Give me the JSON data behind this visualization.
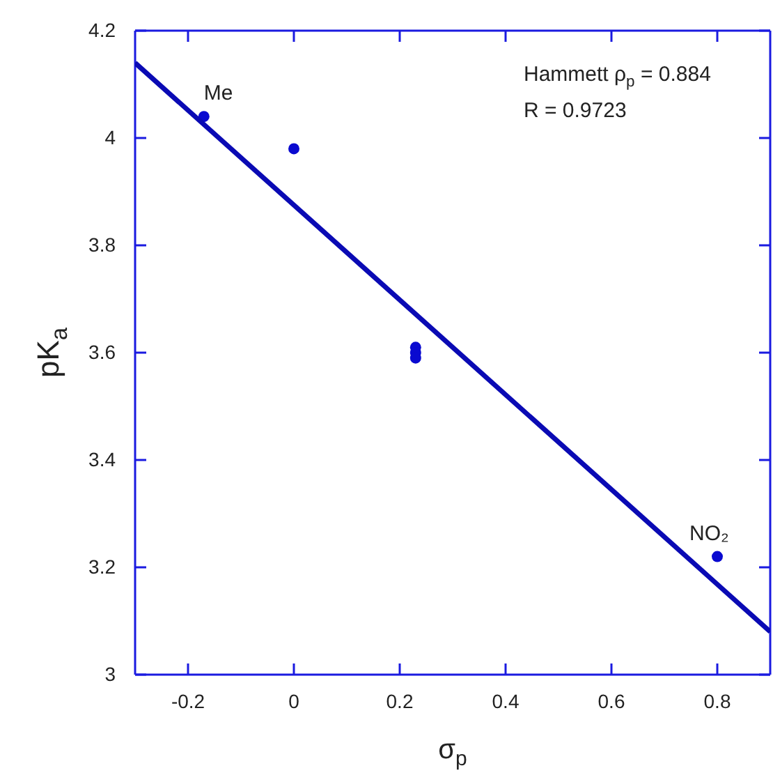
{
  "chart_data": {
    "type": "scatter",
    "xlabel": "σ$_{p}$",
    "ylabel": "pK$_{a}$",
    "xlim": [
      -0.3,
      0.9
    ],
    "xticks": [
      -0.2,
      0,
      0.2,
      0.4,
      0.6,
      0.8
    ],
    "ylim": [
      3,
      4.2
    ],
    "yticks": [
      3,
      3.2,
      3.4,
      3.6,
      3.8,
      4,
      4.2
    ],
    "grid": false,
    "series": [
      {
        "marker": "circle",
        "color": "#0a0ad0",
        "x": [
          -0.17,
          0,
          0.23,
          0.23,
          0.23,
          0.8
        ],
        "values": [
          4.04,
          3.98,
          3.61,
          3.6,
          3.59,
          3.22
        ]
      },
      {
        "type": "line",
        "marker": "none",
        "color": "#0a0ab4",
        "x": [
          -0.3,
          0.9
        ],
        "values": [
          4.14,
          3.08
        ]
      }
    ],
    "annotations": [
      {
        "text": "Hammett ρ$_{p}$ = 0.884"
      },
      {
        "text": "R = 0.9723"
      },
      {
        "text": "Me",
        "x": -0.17,
        "y": 4.04
      },
      {
        "text": "NO₂",
        "x": 0.8,
        "y": 3.22
      }
    ]
  }
}
